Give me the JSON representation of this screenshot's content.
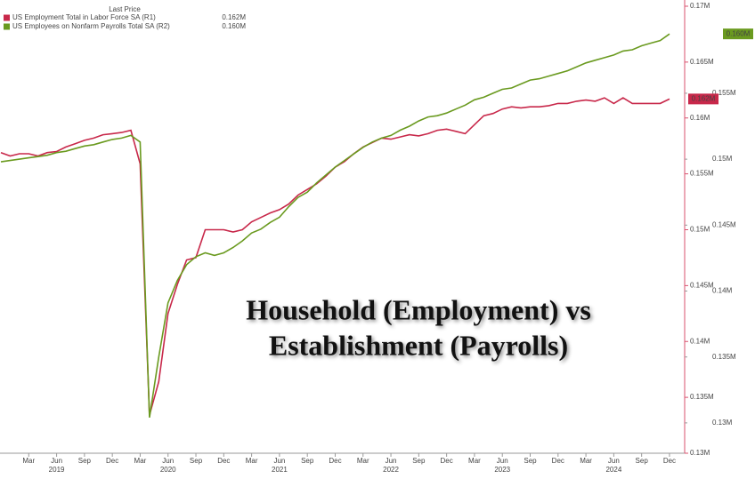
{
  "chart_data": {
    "type": "line",
    "legend_title": "Last Price",
    "annotation": [
      "Household (Employment) vs",
      "Establishment (Payrolls)"
    ],
    "x": [
      "2018-12",
      "2019-01",
      "2019-02",
      "2019-03",
      "2019-04",
      "2019-05",
      "2019-06",
      "2019-07",
      "2019-08",
      "2019-09",
      "2019-10",
      "2019-11",
      "2019-12",
      "2020-01",
      "2020-02",
      "2020-03",
      "2020-04",
      "2020-05",
      "2020-06",
      "2020-07",
      "2020-08",
      "2020-09",
      "2020-10",
      "2020-11",
      "2020-12",
      "2021-01",
      "2021-02",
      "2021-03",
      "2021-04",
      "2021-05",
      "2021-06",
      "2021-07",
      "2021-08",
      "2021-09",
      "2021-10",
      "2021-11",
      "2021-12",
      "2022-01",
      "2022-02",
      "2022-03",
      "2022-04",
      "2022-05",
      "2022-06",
      "2022-07",
      "2022-08",
      "2022-09",
      "2022-10",
      "2022-11",
      "2022-12",
      "2023-01",
      "2023-02",
      "2023-03",
      "2023-04",
      "2023-05",
      "2023-06",
      "2023-07",
      "2023-08",
      "2023-09",
      "2023-10",
      "2023-11",
      "2023-12",
      "2024-01",
      "2024-02",
      "2024-03",
      "2024-04",
      "2024-05",
      "2024-06",
      "2024-07",
      "2024-08",
      "2024-09",
      "2024-10",
      "2024-11",
      "2024-12"
    ],
    "xticks": [
      {
        "value": "2019-03",
        "label": "Mar"
      },
      {
        "value": "2019-06",
        "label": "Jun"
      },
      {
        "value": "2019-09",
        "label": "Sep"
      },
      {
        "value": "2019-12",
        "label": "Dec"
      },
      {
        "value": "2020-03",
        "label": "Mar"
      },
      {
        "value": "2020-06",
        "label": "Jun"
      },
      {
        "value": "2020-09",
        "label": "Sep"
      },
      {
        "value": "2020-12",
        "label": "Dec"
      },
      {
        "value": "2021-03",
        "label": "Mar"
      },
      {
        "value": "2021-06",
        "label": "Jun"
      },
      {
        "value": "2021-09",
        "label": "Sep"
      },
      {
        "value": "2021-12",
        "label": "Dec"
      },
      {
        "value": "2022-03",
        "label": "Mar"
      },
      {
        "value": "2022-06",
        "label": "Jun"
      },
      {
        "value": "2022-09",
        "label": "Sep"
      },
      {
        "value": "2022-12",
        "label": "Dec"
      },
      {
        "value": "2023-03",
        "label": "Mar"
      },
      {
        "value": "2023-06",
        "label": "Jun"
      },
      {
        "value": "2023-09",
        "label": "Sep"
      },
      {
        "value": "2023-12",
        "label": "Dec"
      },
      {
        "value": "2024-03",
        "label": "Mar"
      },
      {
        "value": "2024-06",
        "label": "Jun"
      },
      {
        "value": "2024-09",
        "label": "Sep"
      },
      {
        "value": "2024-12",
        "label": "Dec"
      }
    ],
    "year_labels": [
      {
        "value": "2019-06",
        "label": "2019"
      },
      {
        "value": "2020-06",
        "label": "2020"
      },
      {
        "value": "2021-06",
        "label": "2021"
      },
      {
        "value": "2022-06",
        "label": "2022"
      },
      {
        "value": "2023-06",
        "label": "2023"
      },
      {
        "value": "2024-06",
        "label": "2024"
      }
    ],
    "ylim": [
      0.13,
      0.17
    ],
    "yticks": [
      {
        "value": 0.13,
        "label": "0.13M"
      },
      {
        "value": 0.135,
        "label": "0.135M"
      },
      {
        "value": 0.14,
        "label": "0.14M"
      },
      {
        "value": 0.145,
        "label": "0.145M"
      },
      {
        "value": 0.15,
        "label": "0.15M"
      },
      {
        "value": 0.155,
        "label": "0.155M"
      },
      {
        "value": 0.16,
        "label": "0.16M"
      },
      {
        "value": 0.165,
        "label": "0.165M"
      },
      {
        "value": 0.17,
        "label": "0.17M"
      }
    ],
    "y2lim": [
      0.1277,
      0.1616
    ],
    "y2ticks": [
      {
        "value": 0.13,
        "label": "0.13M"
      },
      {
        "value": 0.135,
        "label": "0.135M"
      },
      {
        "value": 0.14,
        "label": "0.14M"
      },
      {
        "value": 0.145,
        "label": "0.145M"
      },
      {
        "value": 0.15,
        "label": "0.15M"
      },
      {
        "value": 0.155,
        "label": "0.155M"
      }
    ],
    "series": [
      {
        "name": "US Employment Total in Labor Force SA  (R1)",
        "color": "#c8284a",
        "last_label": "0.162M",
        "values": [
          0.1569,
          0.1566,
          0.1568,
          0.1568,
          0.1566,
          0.1569,
          0.157,
          0.1574,
          0.1577,
          0.158,
          0.1582,
          0.1585,
          0.1586,
          0.1587,
          0.1589,
          0.1559,
          0.1334,
          0.1364,
          0.1425,
          0.1451,
          0.1473,
          0.1475,
          0.15,
          0.15,
          0.15,
          0.1498,
          0.15,
          0.1507,
          0.1511,
          0.1515,
          0.1518,
          0.1523,
          0.1531,
          0.1536,
          0.1541,
          0.1548,
          0.1556,
          0.1561,
          0.1568,
          0.1574,
          0.1578,
          0.1582,
          0.1581,
          0.1583,
          0.1585,
          0.1584,
          0.1586,
          0.1589,
          0.159,
          0.1588,
          0.1586,
          0.1594,
          0.1602,
          0.1604,
          0.1608,
          0.161,
          0.1609,
          0.161,
          0.161,
          0.1611,
          0.1613,
          0.1613,
          0.1615,
          0.1616,
          0.1615,
          0.1618,
          0.1613,
          0.1618,
          0.1613,
          0.1613,
          0.1613,
          0.1613,
          0.1617
        ]
      },
      {
        "name": "US Employees on Nonfarm Payrolls Total SA  (R2)",
        "color": "#6a9a1f",
        "axis": "y2",
        "last_label": "0.160M",
        "values": [
          0.1498,
          0.1499,
          0.15,
          0.1501,
          0.1502,
          0.1503,
          0.1505,
          0.1506,
          0.1508,
          0.151,
          0.1511,
          0.1513,
          0.1515,
          0.1516,
          0.1518,
          0.1513,
          0.1304,
          0.135,
          0.1391,
          0.1408,
          0.142,
          0.1426,
          0.1429,
          0.1427,
          0.1429,
          0.1433,
          0.1438,
          0.1444,
          0.1447,
          0.1452,
          0.1456,
          0.1464,
          0.1471,
          0.1475,
          0.1482,
          0.1488,
          0.1494,
          0.1499,
          0.1504,
          0.1509,
          0.1513,
          0.1516,
          0.1518,
          0.1522,
          0.1525,
          0.1529,
          0.1532,
          0.1533,
          0.1535,
          0.1538,
          0.1541,
          0.1545,
          0.1547,
          0.155,
          0.1553,
          0.1554,
          0.1557,
          0.156,
          0.1561,
          0.1563,
          0.1565,
          0.1567,
          0.157,
          0.1573,
          0.1575,
          0.1577,
          0.1579,
          0.1582,
          0.1583,
          0.1586,
          0.1588,
          0.159,
          0.1595
        ]
      }
    ]
  }
}
